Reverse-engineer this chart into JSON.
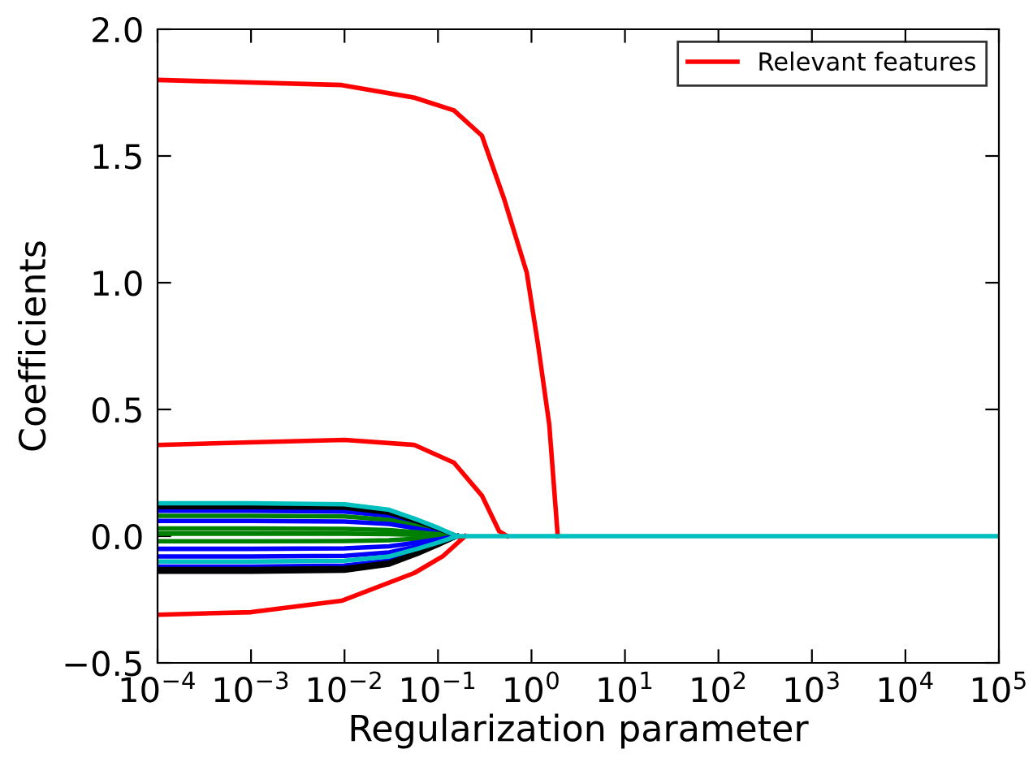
{
  "chart_data": {
    "type": "line",
    "xlabel": "Regularization parameter",
    "ylabel": "Coefficients",
    "log": "x",
    "xlim": [
      0.0001,
      100000
    ],
    "ylim": [
      -0.5,
      2.0
    ],
    "xticks": [
      {
        "value": 0.0001,
        "label": "10$^{−4}$"
      },
      {
        "value": 0.001,
        "label": "10$^{−3}$"
      },
      {
        "value": 0.01,
        "label": "10$^{−2}$"
      },
      {
        "value": 0.1,
        "label": "10$^{−1}$"
      },
      {
        "value": 1,
        "label": "10$^{0}$"
      },
      {
        "value": 10,
        "label": "10$^{1}$"
      },
      {
        "value": 100,
        "label": "10$^{2}$"
      },
      {
        "value": 1000,
        "label": "10$^{3}$"
      },
      {
        "value": 10000,
        "label": "10$^{4}$"
      },
      {
        "value": 100000,
        "label": "10$^{5}$"
      }
    ],
    "yticks": [
      {
        "value": -0.5,
        "label": "−0.5"
      },
      {
        "value": 0,
        "label": "0.0"
      },
      0.5,
      {
        "value": 1,
        "label": "1.0"
      },
      1.5,
      {
        "value": 2,
        "label": "2.0"
      }
    ],
    "grid": false,
    "legend": "top right",
    "line_style": "solid",
    "marker": "none",
    "series": [
      {
        "color": "#0000ff",
        "x": [
          0.0001,
          0.001,
          0.01,
          0.03,
          0.06,
          0.1,
          0.16
        ],
        "values": [
          0.1,
          0.1,
          0.097,
          0.08,
          0.05,
          0.025,
          0
        ]
      },
      {
        "color": "#008000",
        "x": [
          0.0001,
          0.001,
          0.01,
          0.03,
          0.06,
          0.1,
          0.16
        ],
        "values": [
          0.08,
          0.08,
          0.078,
          0.064,
          0.04,
          0.02,
          0
        ]
      },
      {
        "color": "#0000ff",
        "x": [
          0.0001,
          0.001,
          0.01,
          0.03,
          0.06,
          0.1,
          0.16
        ],
        "values": [
          0.06,
          0.06,
          0.058,
          0.048,
          0.03,
          0.015,
          0
        ]
      },
      {
        "color": "#008000",
        "x": [
          0.0001,
          0.001,
          0.01,
          0.03,
          0.06,
          0.1,
          0.16
        ],
        "values": [
          0.03,
          0.03,
          0.029,
          0.024,
          0.015,
          0.008,
          0
        ]
      },
      {
        "color": "#008000",
        "x": [
          0.0001,
          0.001,
          0.01,
          0.03,
          0.06,
          0.1,
          0.16
        ],
        "values": [
          0.01,
          0.01,
          0.01,
          0.008,
          0.005,
          0.003,
          0
        ]
      },
      {
        "color": "#008000",
        "x": [
          0.0001,
          0.001,
          0.01,
          0.03,
          0.06,
          0.1,
          0.16
        ],
        "values": [
          -0.02,
          -0.02,
          -0.019,
          -0.016,
          -0.01,
          -0.005,
          0
        ]
      },
      {
        "color": "#0000ff",
        "x": [
          0.0001,
          0.001,
          0.01,
          0.03,
          0.06,
          0.1,
          0.16
        ],
        "values": [
          -0.05,
          -0.05,
          -0.048,
          -0.04,
          -0.025,
          -0.013,
          0
        ]
      },
      {
        "color": "#0000ff",
        "x": [
          0.0001,
          0.001,
          0.01,
          0.03,
          0.06,
          0.1,
          0.16
        ],
        "values": [
          -0.08,
          -0.08,
          -0.078,
          -0.064,
          -0.04,
          -0.02,
          0
        ]
      },
      {
        "color": "#0000ff",
        "x": [
          0.0001,
          0.001,
          0.01,
          0.03,
          0.06,
          0.1,
          0.16
        ],
        "values": [
          -0.12,
          -0.12,
          -0.116,
          -0.096,
          -0.06,
          -0.03,
          0
        ]
      },
      {
        "color": "#000000",
        "x": [
          0.0001,
          0.001,
          0.01,
          0.03,
          0.06,
          0.1,
          0.16
        ],
        "values": [
          -0.14,
          -0.14,
          -0.136,
          -0.112,
          -0.07,
          -0.035,
          0
        ]
      },
      {
        "color": "#000000",
        "x": [
          0.0001,
          0.001,
          0.01,
          0.03,
          0.06,
          0.1,
          0.16
        ],
        "values": [
          0.115,
          0.115,
          0.112,
          0.092,
          0.058,
          0.029,
          0
        ]
      },
      {
        "color": "#000000",
        "x": [
          0.0001,
          0.001,
          0.01,
          0.03,
          0.06,
          0.1,
          0.16
        ],
        "values": [
          -0.13,
          -0.13,
          -0.126,
          -0.104,
          -0.065,
          -0.033,
          0
        ]
      },
      {
        "color": "#00bfbf",
        "x": [
          0.0001,
          0.001,
          0.01,
          0.03,
          0.06,
          0.1,
          0.16
        ],
        "values": [
          -0.1,
          -0.1,
          -0.097,
          -0.08,
          -0.05,
          -0.025,
          0
        ]
      },
      {
        "name": "Relevant features",
        "color": "#ff0000",
        "x": [
          0.0001,
          0.0093,
          0.056,
          0.148,
          0.295,
          0.51,
          0.89,
          1.17,
          1.55,
          1.91
        ],
        "values": [
          1.8,
          1.78,
          1.73,
          1.68,
          1.58,
          1.33,
          1.04,
          0.76,
          0.44,
          0
        ]
      },
      {
        "color": "#ff0000",
        "x": [
          0.0001,
          0.001,
          0.01,
          0.056,
          0.148,
          0.295,
          0.45,
          0.55
        ],
        "values": [
          0.36,
          0.37,
          0.38,
          0.36,
          0.29,
          0.16,
          0.02,
          0
        ]
      },
      {
        "color": "#ff0000",
        "x": [
          0.0001,
          0.001,
          0.0093,
          0.056,
          0.112,
          0.195
        ],
        "values": [
          -0.31,
          -0.3,
          -0.255,
          -0.145,
          -0.08,
          0
        ]
      },
      {
        "color": "#00bfbf",
        "x": [
          0.0001,
          0.001,
          0.01,
          0.03,
          0.06,
          0.1,
          0.16,
          100000
        ],
        "values": [
          0.13,
          0.13,
          0.126,
          0.104,
          0.065,
          0.033,
          0,
          0
        ]
      }
    ]
  }
}
